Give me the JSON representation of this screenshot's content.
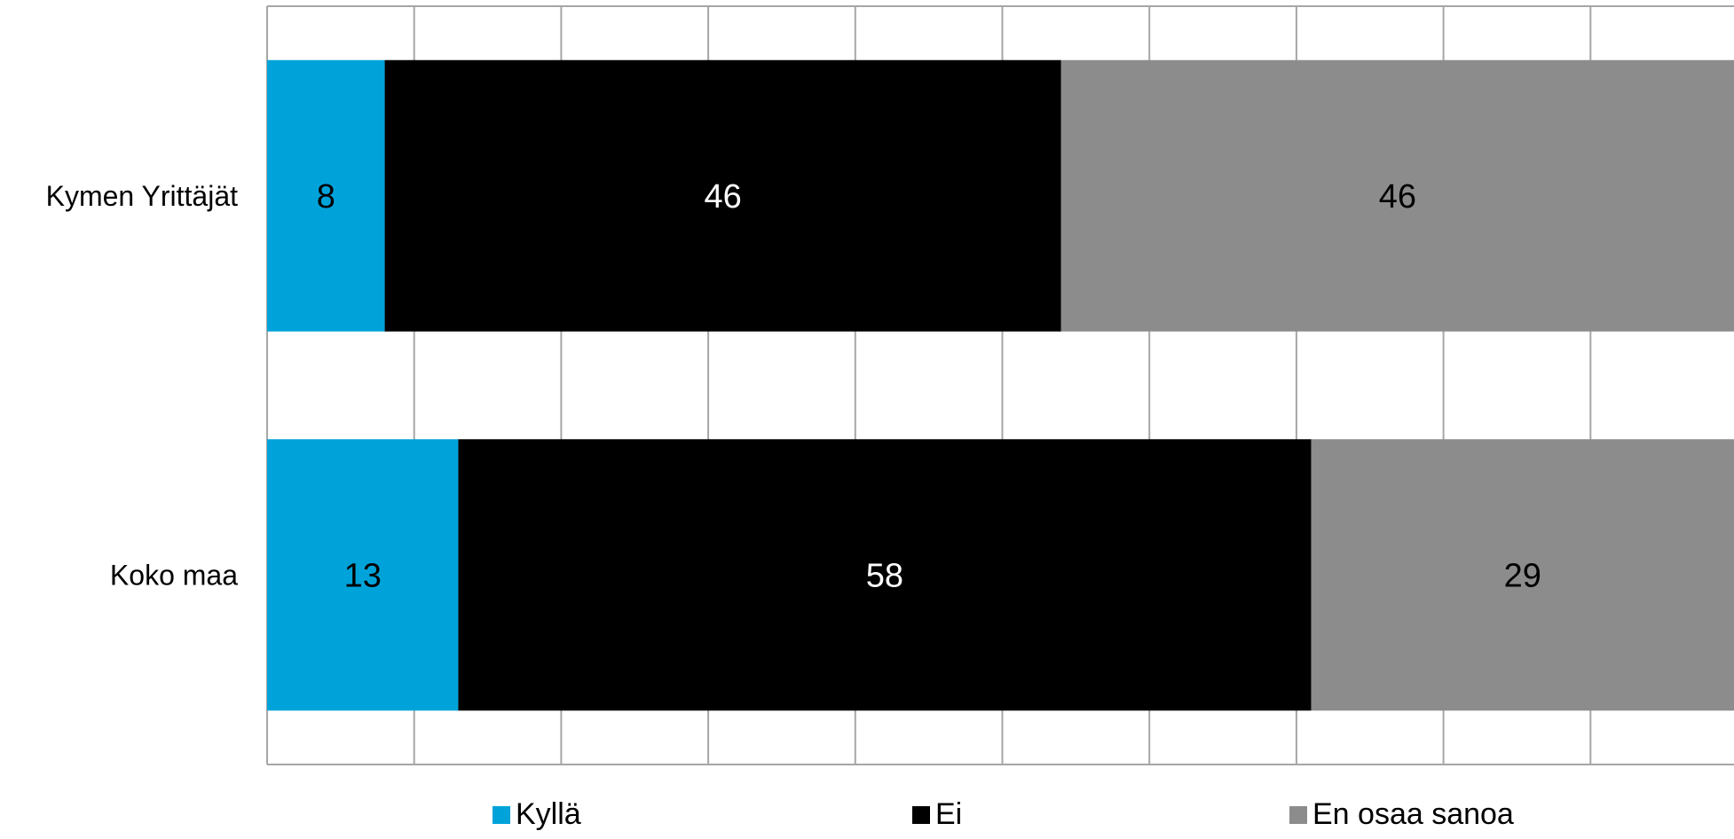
{
  "chart_data": {
    "type": "bar",
    "orientation": "horizontal",
    "stacked": true,
    "categories": [
      "Kymen Yrittäjät",
      "Koko maa"
    ],
    "series": [
      {
        "name": "Kyllä",
        "values": [
          8,
          13
        ],
        "color": "#00a3d9",
        "label_color": "#000000"
      },
      {
        "name": "Ei",
        "values": [
          46,
          58
        ],
        "color": "#000000",
        "label_color": "#ffffff"
      },
      {
        "name": "En osaa sanoa",
        "values": [
          46,
          29
        ],
        "color": "#8c8c8c",
        "label_color": "#000000"
      }
    ],
    "xlim": [
      0,
      100
    ],
    "grid": true,
    "legend": "bottom"
  }
}
